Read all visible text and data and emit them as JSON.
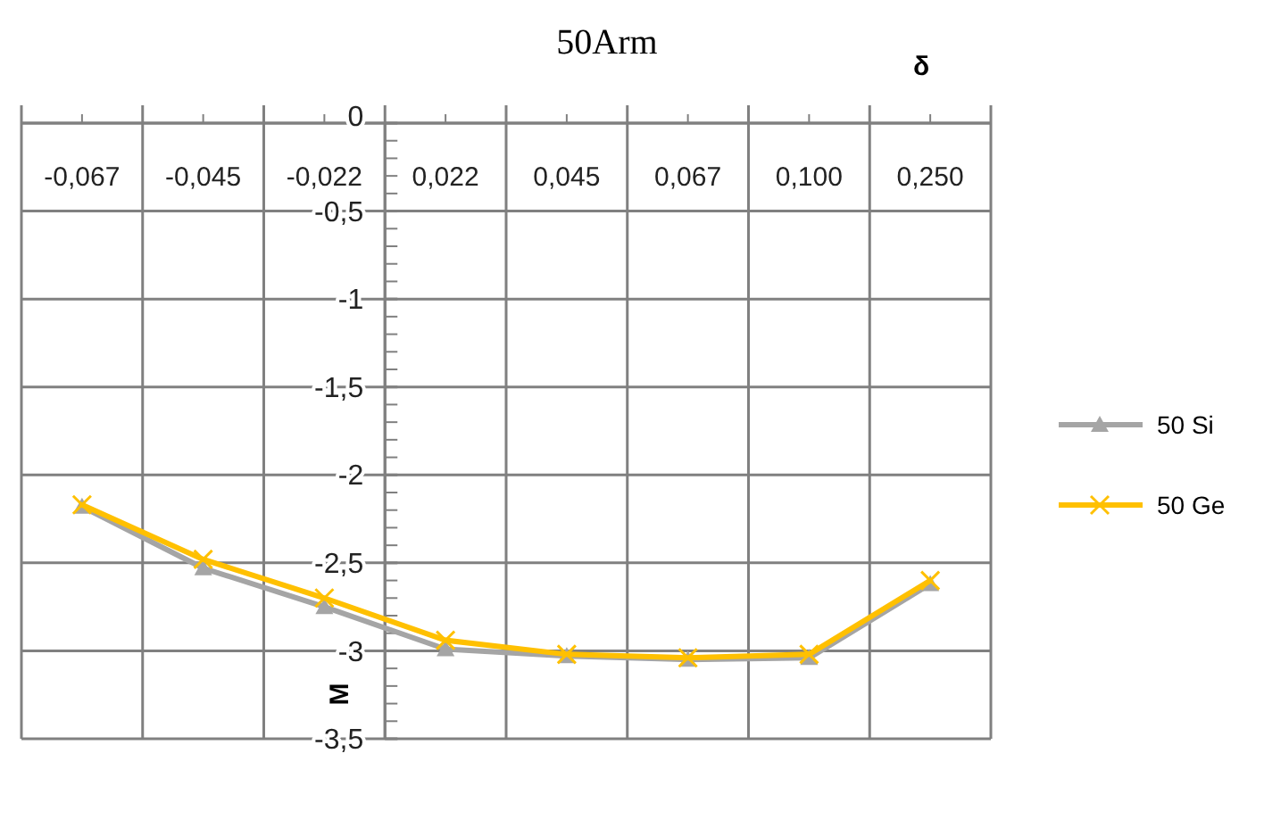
{
  "chart_data": {
    "type": "line",
    "title": "50Arm",
    "xlabel": "δ",
    "ylabel": "M",
    "categories": [
      "-0,067",
      "-0,045",
      "-0,022",
      "0,022",
      "0,045",
      "0,067",
      "0,100",
      "0,250"
    ],
    "series": [
      {
        "name": "50 Si",
        "color": "#a5a5a5",
        "marker": "triangle",
        "values": [
          -2.18,
          -2.53,
          -2.75,
          -2.99,
          -3.03,
          -3.05,
          -3.04,
          -2.62
        ]
      },
      {
        "name": "50 Ge",
        "color": "#ffc000",
        "marker": "cross",
        "values": [
          -2.17,
          -2.48,
          -2.7,
          -2.94,
          -3.02,
          -3.04,
          -3.02,
          -2.6
        ]
      }
    ],
    "ylim": [
      -3.5,
      0
    ],
    "yticks": [
      0,
      {
        "value": -0.5,
        "label": "-0,5"
      },
      -1,
      {
        "value": -1.5,
        "label": "-1,5"
      },
      -2,
      {
        "value": -2.5,
        "label": "-2,5"
      },
      -3,
      {
        "value": -3.5,
        "label": "-3,5"
      }
    ],
    "grid": true,
    "legend": "right",
    "line_style": "solid"
  }
}
